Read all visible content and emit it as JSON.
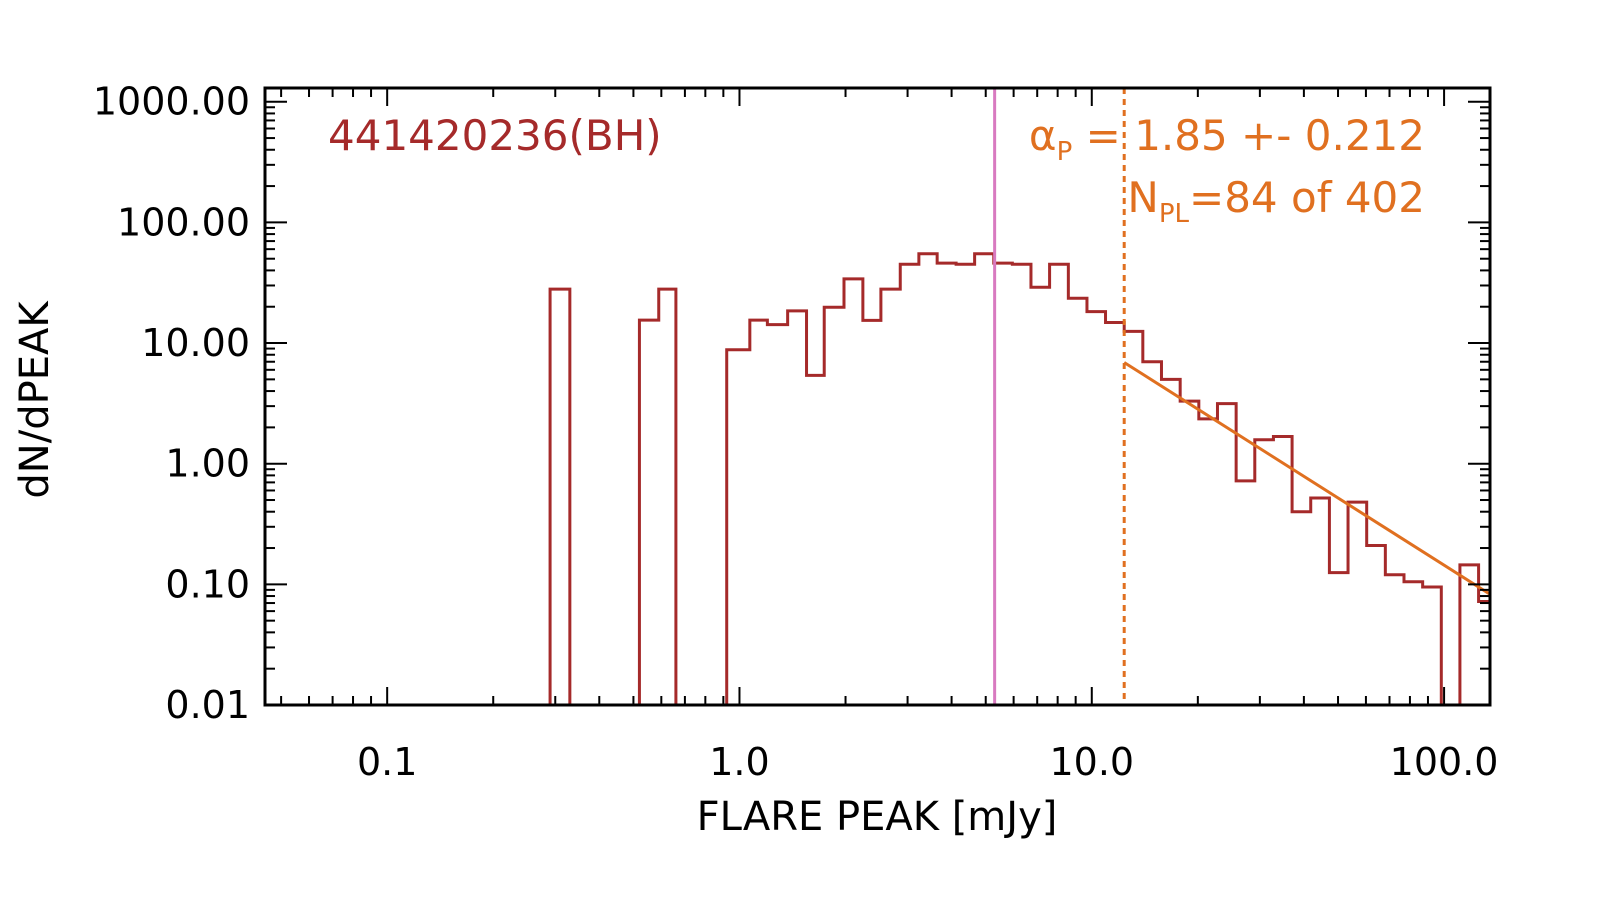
{
  "chart_data": {
    "type": "histogram",
    "xlabel": "FLARE PEAK [mJy]",
    "ylabel": "dN/dPEAK",
    "xscale": "log",
    "yscale": "log",
    "xlim": [
      0.045,
      135
    ],
    "ylim": [
      0.01,
      1300
    ],
    "xticks": [
      {
        "value": 0.1,
        "label": "0.1"
      },
      {
        "value": 1,
        "label": "1.0"
      },
      {
        "value": 10,
        "label": "10.0"
      },
      {
        "value": 100,
        "label": "100.0"
      }
    ],
    "yticks": [
      {
        "value": 0.01,
        "label": "0.01"
      },
      {
        "value": 0.1,
        "label": "0.10"
      },
      {
        "value": 1,
        "label": "1.00"
      },
      {
        "value": 10,
        "label": "10.00"
      },
      {
        "value": 100,
        "label": "100.00"
      },
      {
        "value": 1000,
        "label": "1000.00"
      }
    ],
    "histogram": {
      "color": "#a52a2a",
      "floor": 0.01,
      "edges": [
        0.045,
        0.29,
        0.33,
        0.52,
        0.59,
        0.66,
        0.92,
        1.07,
        1.2,
        1.37,
        1.55,
        1.74,
        1.98,
        2.24,
        2.52,
        2.86,
        3.23,
        3.64,
        4.12,
        4.65,
        5.27,
        5.95,
        6.72,
        7.59,
        8.58,
        9.69,
        10.94,
        12.36,
        13.96,
        15.77,
        17.82,
        20.13,
        22.74,
        25.69,
        29.02,
        32.78,
        37.03,
        41.83,
        47.26,
        53.38,
        60.3,
        68.12,
        76.95,
        86.93,
        98.2,
        110.9,
        125.3,
        135
      ],
      "values": [
        0.01,
        28,
        0.01,
        15.5,
        28,
        0.01,
        8.8,
        15.5,
        14.2,
        18.5,
        5.4,
        19.8,
        34,
        15.4,
        28,
        45,
        55,
        46,
        45,
        55,
        46,
        45,
        29,
        45,
        23.5,
        18.2,
        14.8,
        12.5,
        7.0,
        5.0,
        3.3,
        2.35,
        3.15,
        0.72,
        1.58,
        1.68,
        0.4,
        0.52,
        0.125,
        0.48,
        0.21,
        0.12,
        0.105,
        0.095,
        0.01,
        0.145,
        0.072
      ]
    },
    "annotations": {
      "source_label": "441420236(BH)",
      "source_color": "#a52a2a",
      "alpha_symbol": "α",
      "alpha_subscript": "P",
      "alpha_text": " = 1.85 +- 0.212",
      "npl_symbol": "N",
      "npl_subscript": "PL",
      "npl_text": "=84 of 402",
      "fit_color": "#e07020"
    },
    "power_law_fit": {
      "alpha": 1.85,
      "x_start": 12.36,
      "x_end": 135,
      "y_at_start": 6.9,
      "color": "#e07020"
    },
    "vertical_lines": [
      {
        "x": 5.3,
        "style": "solid",
        "color": "#d87ac0"
      },
      {
        "x": 12.36,
        "style": "dotted",
        "color": "#e07020"
      }
    ]
  }
}
